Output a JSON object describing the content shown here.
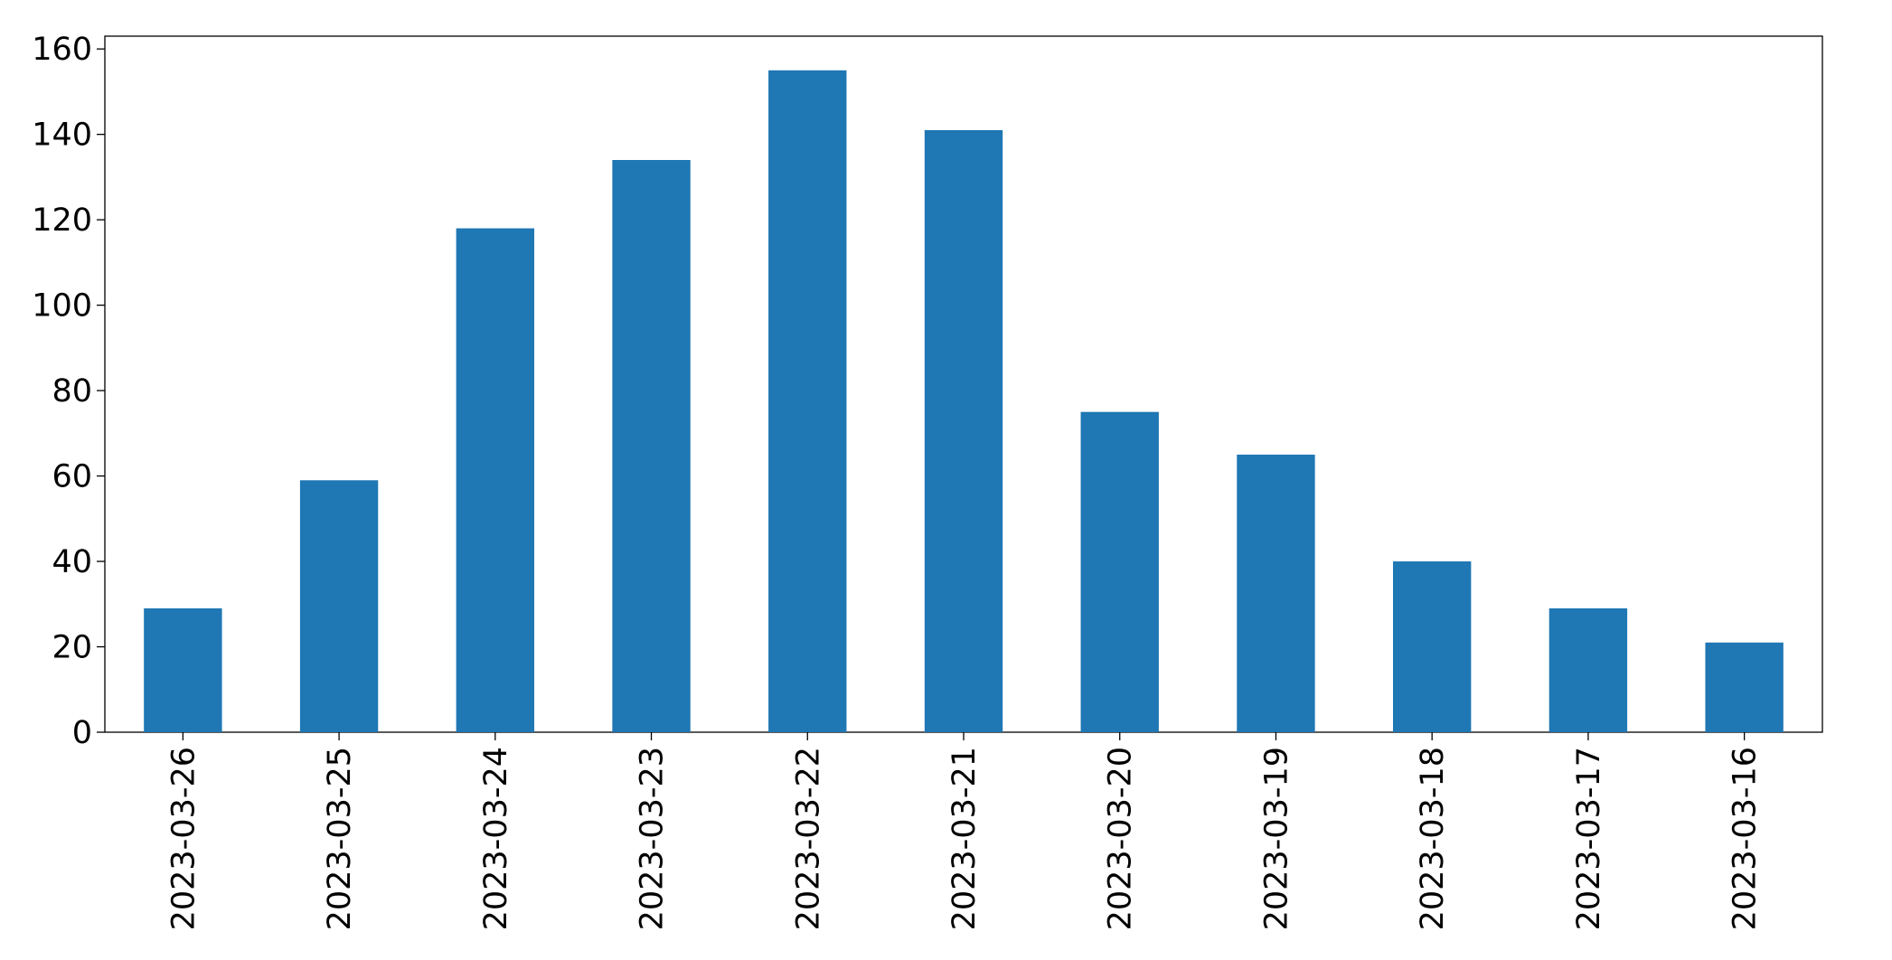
{
  "chart_data": {
    "type": "bar",
    "categories": [
      "2023-03-26",
      "2023-03-25",
      "2023-03-24",
      "2023-03-23",
      "2023-03-22",
      "2023-03-21",
      "2023-03-20",
      "2023-03-19",
      "2023-03-18",
      "2023-03-17",
      "2023-03-16"
    ],
    "values": [
      29,
      59,
      118,
      134,
      155,
      141,
      75,
      65,
      40,
      29,
      21
    ],
    "color": "#1f77b4",
    "ylim": [
      0,
      163
    ],
    "yticks": [
      0,
      20,
      40,
      60,
      80,
      100,
      120,
      140,
      160
    ],
    "grid": false
  }
}
